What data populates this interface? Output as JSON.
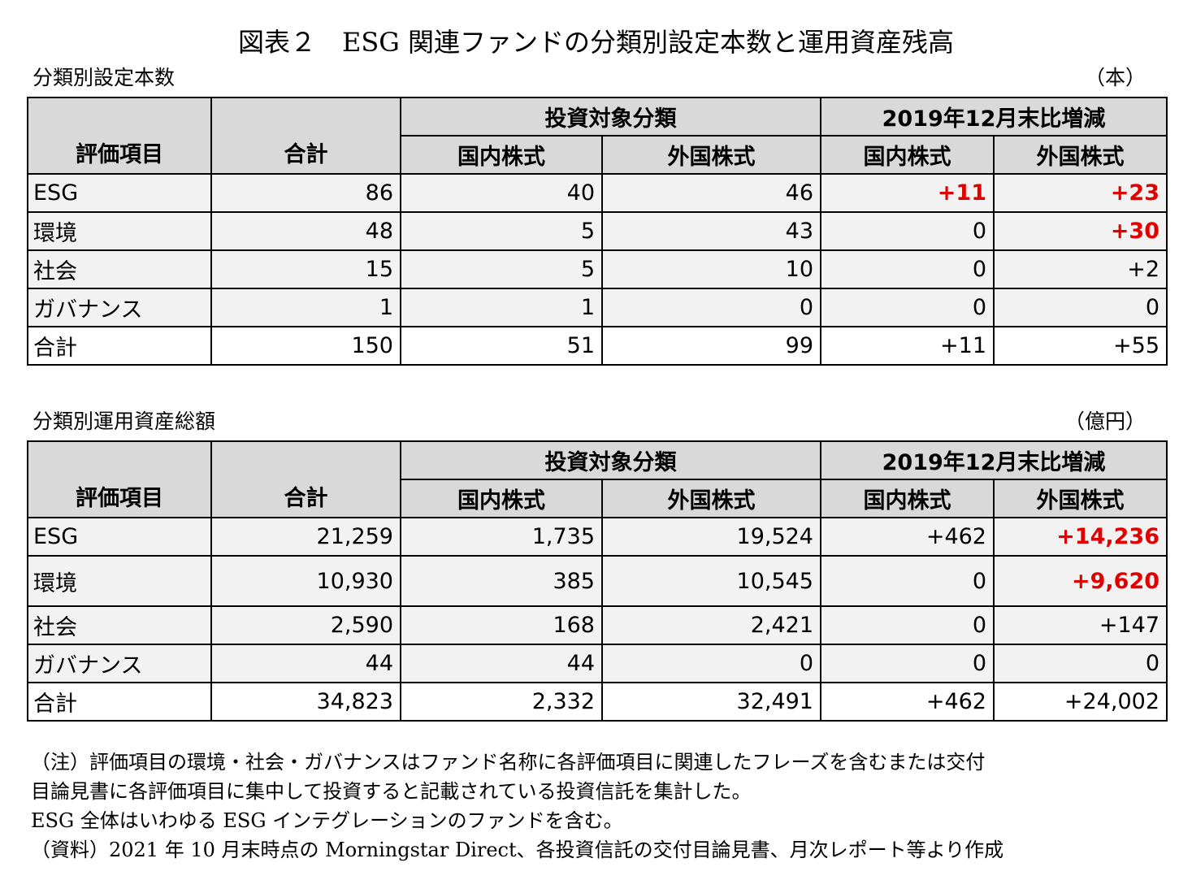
{
  "figure_title": "図表２　ESG 関連ファンドの分類別設定本数と運用資産残高",
  "table1": {
    "caption": "分類別設定本数",
    "unit": "（本）",
    "headers": {
      "item": "評価項目",
      "total": "合計",
      "investment_group": "投資対象分類",
      "change_group": "2019年12月末比増減",
      "domestic": "国内株式",
      "foreign": "外国株式"
    },
    "rows": [
      {
        "item": "ESG",
        "total": "86",
        "dom": "40",
        "for": "46",
        "chg_dom": "+11",
        "chg_for": "+23"
      },
      {
        "item": "環境",
        "total": "48",
        "dom": "5",
        "for": "43",
        "chg_dom": "0",
        "chg_for": "+30"
      },
      {
        "item": "社会",
        "total": "15",
        "dom": "5",
        "for": "10",
        "chg_dom": "0",
        "chg_for": "+2"
      },
      {
        "item": "ガバナンス",
        "total": "1",
        "dom": "1",
        "for": "0",
        "chg_dom": "0",
        "chg_for": "0"
      },
      {
        "item": "合計",
        "total": "150",
        "dom": "51",
        "for": "99",
        "chg_dom": "+11",
        "chg_for": "+55"
      }
    ],
    "highlight_color": "#e00000"
  },
  "table2": {
    "caption": "分類別運用資産総額",
    "unit": "（億円）",
    "headers": {
      "item": "評価項目",
      "total": "合計",
      "investment_group": "投資対象分類",
      "change_group": "2019年12月末比増減",
      "domestic": "国内株式",
      "foreign": "外国株式"
    },
    "rows": [
      {
        "item": "ESG",
        "total": "21,259",
        "dom": "1,735",
        "for": "19,524",
        "chg_dom": "+462",
        "chg_for": "+14,236"
      },
      {
        "item": "環境",
        "total": "10,930",
        "dom": "385",
        "for": "10,545",
        "chg_dom": "0",
        "chg_for": "+9,620"
      },
      {
        "item": "社会",
        "total": "2,590",
        "dom": "168",
        "for": "2,421",
        "chg_dom": "0",
        "chg_for": "+147"
      },
      {
        "item": "ガバナンス",
        "total": "44",
        "dom": "44",
        "for": "0",
        "chg_dom": "0",
        "chg_for": "0"
      },
      {
        "item": "合計",
        "total": "34,823",
        "dom": "2,332",
        "for": "32,491",
        "chg_dom": "+462",
        "chg_for": "+24,002"
      }
    ]
  },
  "notes": [
    "（注）評価項目の環境・社会・ガバナンスはファンド名称に各評価項目に関連したフレーズを含むまたは交付",
    "目論見書に各評価項目に集中して投資すると記載されている投資信託を集計した。",
    "ESG 全体はいわゆる ESG インテグレーションのファンドを含む。",
    "（資料）2021 年 10 月末時点の Morningstar Direct、各投資信託の交付目論見書、月次レポート等より作成"
  ]
}
